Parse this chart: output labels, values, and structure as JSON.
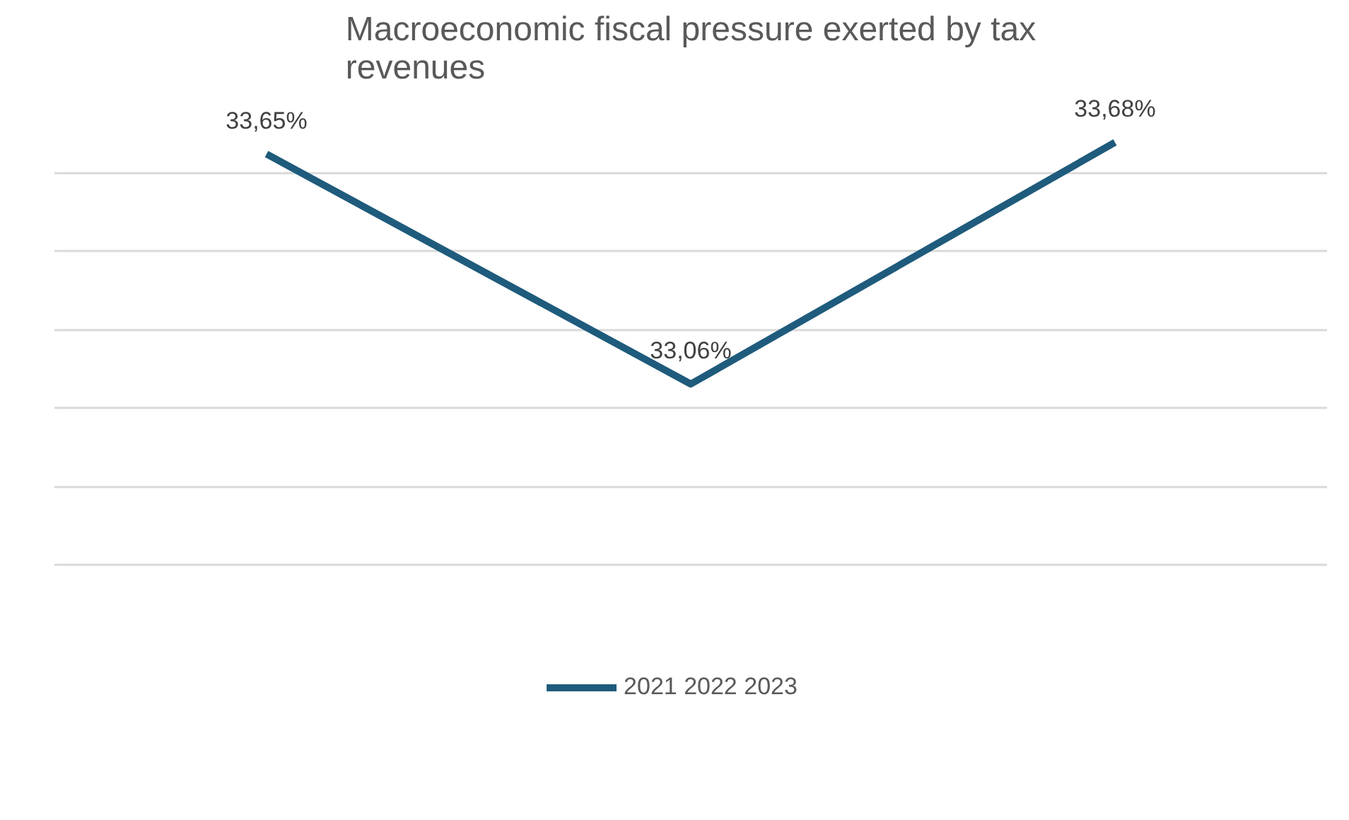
{
  "chart_data": {
    "type": "line",
    "title": "Macroeconomic fiscal pressure exerted by tax revenues",
    "categories": [
      null,
      null,
      null
    ],
    "series": [
      {
        "name": "2021 2022 2023",
        "color": "#1f5b7c",
        "values": [
          33.65,
          33.06,
          33.68
        ],
        "value_labels": [
          "33,65%",
          "33,06%",
          "33,68%"
        ]
      }
    ],
    "tick_labels": false,
    "grid": "y",
    "legend": "bottom",
    "marker": "none",
    "line_style": "solid"
  }
}
